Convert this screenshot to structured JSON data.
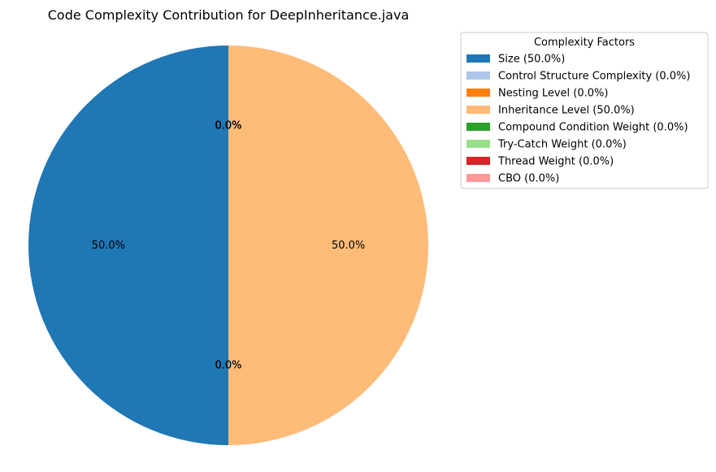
{
  "chart_data": {
    "type": "pie",
    "title": "Code Complexity Contribution for DeepInheritance.java",
    "legend": {
      "title": "Complexity Factors",
      "placement": "outside-right-top"
    },
    "start_angle_deg": 90,
    "direction": "counterclockwise",
    "slices": [
      {
        "label": "Size",
        "legend_text": "Size (50.0%)",
        "value": 50.0,
        "pct_label": "50.0%",
        "color": "#1f77b4"
      },
      {
        "label": "Control Structure Complexity",
        "legend_text": "Control Structure Complexity (0.0%)",
        "value": 0.0,
        "pct_label": "0.0%",
        "color": "#aec7e8"
      },
      {
        "label": "Nesting Level",
        "legend_text": "Nesting Level (0.0%)",
        "value": 0.0,
        "pct_label": "0.0%",
        "color": "#ff7f0e"
      },
      {
        "label": "Inheritance Level",
        "legend_text": "Inheritance Level (50.0%)",
        "value": 50.0,
        "pct_label": "50.0%",
        "color": "#ffbb78"
      },
      {
        "label": "Compound Condition Weight",
        "legend_text": "Compound Condition Weight (0.0%)",
        "value": 0.0,
        "pct_label": "0.0%",
        "color": "#2ca02c"
      },
      {
        "label": "Try-Catch Weight",
        "legend_text": "Try-Catch Weight (0.0%)",
        "value": 0.0,
        "pct_label": "0.0%",
        "color": "#98df8a"
      },
      {
        "label": "Thread Weight",
        "legend_text": "Thread Weight (0.0%)",
        "value": 0.0,
        "pct_label": "0.0%",
        "color": "#d62728"
      },
      {
        "label": "CBO",
        "legend_text": "CBO (0.0%)",
        "value": 0.0,
        "pct_label": "0.0%",
        "color": "#ff9896"
      }
    ]
  }
}
